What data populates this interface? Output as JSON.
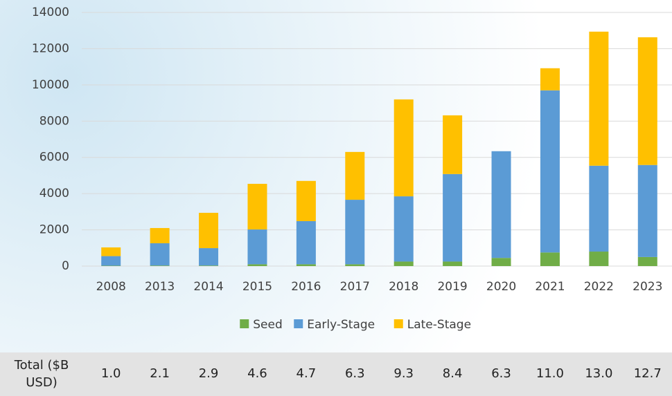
{
  "chart_data": {
    "type": "stacked_bar",
    "categories": [
      "2008",
      "2013",
      "2014",
      "2015",
      "2016",
      "2017",
      "2018",
      "2019",
      "2020",
      "2021",
      "2022",
      "2023"
    ],
    "series": [
      {
        "name": "Seed",
        "color": "#70ad47",
        "values": [
          20,
          30,
          30,
          100,
          100,
          100,
          250,
          250,
          450,
          750,
          800,
          500
        ]
      },
      {
        "name": "Early-Stage",
        "color": "#5b9bd5",
        "values": [
          530,
          1230,
          960,
          1920,
          2380,
          3560,
          3600,
          4830,
          5890,
          8950,
          4740,
          5080
        ]
      },
      {
        "name": "Late-Stage",
        "color": "#ffc000",
        "values": [
          480,
          840,
          1950,
          2520,
          2220,
          2640,
          5350,
          3240,
          0,
          1220,
          7400,
          7050
        ]
      }
    ],
    "ylim": [
      0,
      14000
    ],
    "yticks": [
      0,
      2000,
      4000,
      6000,
      8000,
      10000,
      12000,
      14000
    ],
    "grid": true,
    "legend": "bottom"
  },
  "table": {
    "label": "Total ($B USD)",
    "values": [
      "1.0",
      "2.1",
      "2.9",
      "4.6",
      "4.7",
      "6.3",
      "9.3",
      "8.4",
      "6.3",
      "11.0",
      "13.0",
      "12.7"
    ]
  }
}
